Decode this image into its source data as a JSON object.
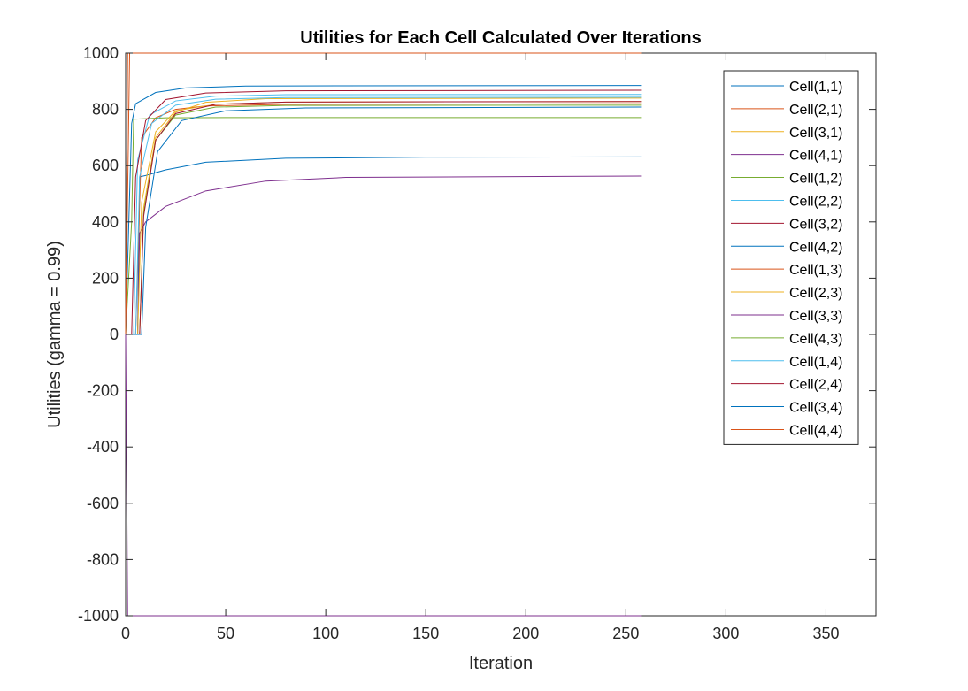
{
  "chart_data": {
    "type": "line",
    "title": "Utilities for Each Cell Calculated Over Iterations",
    "xlabel": "Iteration",
    "ylabel": "Utilities (gamma = 0.99)",
    "xlim": [
      0,
      375
    ],
    "ylim": [
      -1000,
      1000
    ],
    "xticks": [
      0,
      50,
      100,
      150,
      200,
      250,
      300,
      350
    ],
    "yticks": [
      -1000,
      -800,
      -600,
      -400,
      -200,
      0,
      200,
      400,
      600,
      800,
      1000
    ],
    "grid": false,
    "legend_position": "top-right",
    "iterations": 258,
    "series": [
      {
        "name": "Cell(1,1)",
        "color": "#0072BD",
        "points": [
          [
            0,
            0
          ],
          [
            6,
            2
          ],
          [
            7,
            560
          ],
          [
            10,
            565
          ],
          [
            20,
            585
          ],
          [
            40,
            612
          ],
          [
            80,
            626
          ],
          [
            150,
            630
          ],
          [
            258,
            631
          ]
        ]
      },
      {
        "name": "Cell(2,1)",
        "color": "#D95319",
        "points": [
          [
            0,
            0
          ],
          [
            5,
            0
          ],
          [
            8,
            700
          ],
          [
            15,
            770
          ],
          [
            25,
            800
          ],
          [
            40,
            812
          ],
          [
            80,
            818
          ],
          [
            258,
            820
          ]
        ]
      },
      {
        "name": "Cell(3,1)",
        "color": "#EDB120",
        "points": [
          [
            0,
            0
          ],
          [
            7,
            0
          ],
          [
            9,
            450
          ],
          [
            15,
            700
          ],
          [
            25,
            790
          ],
          [
            40,
            825
          ],
          [
            70,
            838
          ],
          [
            258,
            840
          ]
        ]
      },
      {
        "name": "Cell(4,1)",
        "color": "#7E2F8E",
        "points": [
          [
            0,
            0
          ],
          [
            6,
            0
          ],
          [
            7,
            360
          ],
          [
            10,
            400
          ],
          [
            20,
            455
          ],
          [
            40,
            510
          ],
          [
            70,
            545
          ],
          [
            110,
            558
          ],
          [
            258,
            563
          ]
        ]
      },
      {
        "name": "Cell(1,2)",
        "color": "#77AC30",
        "points": [
          [
            0,
            0
          ],
          [
            3,
            400
          ],
          [
            4,
            765
          ],
          [
            20,
            770
          ],
          [
            60,
            771
          ],
          [
            258,
            771
          ]
        ]
      },
      {
        "name": "Cell(2,2)",
        "color": "#4DBEEE",
        "points": [
          [
            0,
            0
          ],
          [
            4,
            0
          ],
          [
            6,
            620
          ],
          [
            12,
            780
          ],
          [
            25,
            830
          ],
          [
            45,
            847
          ],
          [
            80,
            852
          ],
          [
            258,
            853
          ]
        ]
      },
      {
        "name": "Cell(3,2)",
        "color": "#A2142F",
        "points": [
          [
            0,
            0
          ],
          [
            3,
            0
          ],
          [
            5,
            560
          ],
          [
            10,
            760
          ],
          [
            20,
            835
          ],
          [
            40,
            858
          ],
          [
            80,
            866
          ],
          [
            258,
            868
          ]
        ]
      },
      {
        "name": "Cell(4,2)",
        "color": "#0072BD",
        "points": [
          [
            0,
            0
          ],
          [
            3,
            750
          ],
          [
            5,
            820
          ],
          [
            15,
            860
          ],
          [
            30,
            876
          ],
          [
            60,
            883
          ],
          [
            258,
            885
          ]
        ]
      },
      {
        "name": "Cell(1,3)",
        "color": "#D95319",
        "points": [
          [
            0,
            0
          ],
          [
            1,
            1000
          ],
          [
            258,
            1000
          ]
        ]
      },
      {
        "name": "Cell(2,3)",
        "color": "#EDB120",
        "points": [
          [
            0,
            0
          ],
          [
            6,
            0
          ],
          [
            8,
            470
          ],
          [
            15,
            720
          ],
          [
            25,
            795
          ],
          [
            45,
            818
          ],
          [
            80,
            826
          ],
          [
            258,
            828
          ]
        ]
      },
      {
        "name": "Cell(3,3)",
        "color": "#7E2F8E",
        "points": [
          [
            0,
            0
          ],
          [
            1,
            -1000
          ],
          [
            258,
            -1000
          ]
        ]
      },
      {
        "name": "Cell(4,3)",
        "color": "#77AC30",
        "points": [
          [
            0,
            0
          ],
          [
            7,
            0
          ],
          [
            9,
            430
          ],
          [
            15,
            690
          ],
          [
            25,
            780
          ],
          [
            45,
            808
          ],
          [
            80,
            814
          ],
          [
            258,
            815
          ]
        ]
      },
      {
        "name": "Cell(1,4)",
        "color": "#4DBEEE",
        "points": [
          [
            0,
            0
          ],
          [
            5,
            0
          ],
          [
            7,
            560
          ],
          [
            13,
            750
          ],
          [
            25,
            815
          ],
          [
            45,
            836
          ],
          [
            80,
            842
          ],
          [
            258,
            843
          ]
        ]
      },
      {
        "name": "Cell(2,4)",
        "color": "#A2142F",
        "points": [
          [
            0,
            0
          ],
          [
            7,
            0
          ],
          [
            9,
            420
          ],
          [
            15,
            690
          ],
          [
            25,
            785
          ],
          [
            45,
            818
          ],
          [
            80,
            826
          ],
          [
            258,
            828
          ]
        ]
      },
      {
        "name": "Cell(3,4)",
        "color": "#0072BD",
        "points": [
          [
            0,
            0
          ],
          [
            8,
            0
          ],
          [
            10,
            380
          ],
          [
            16,
            650
          ],
          [
            28,
            760
          ],
          [
            50,
            795
          ],
          [
            90,
            805
          ],
          [
            258,
            808
          ]
        ]
      },
      {
        "name": "Cell(4,4)",
        "color": "#D95319",
        "points": [
          [
            0,
            0
          ],
          [
            2,
            1000
          ],
          [
            258,
            1000
          ]
        ]
      }
    ]
  }
}
